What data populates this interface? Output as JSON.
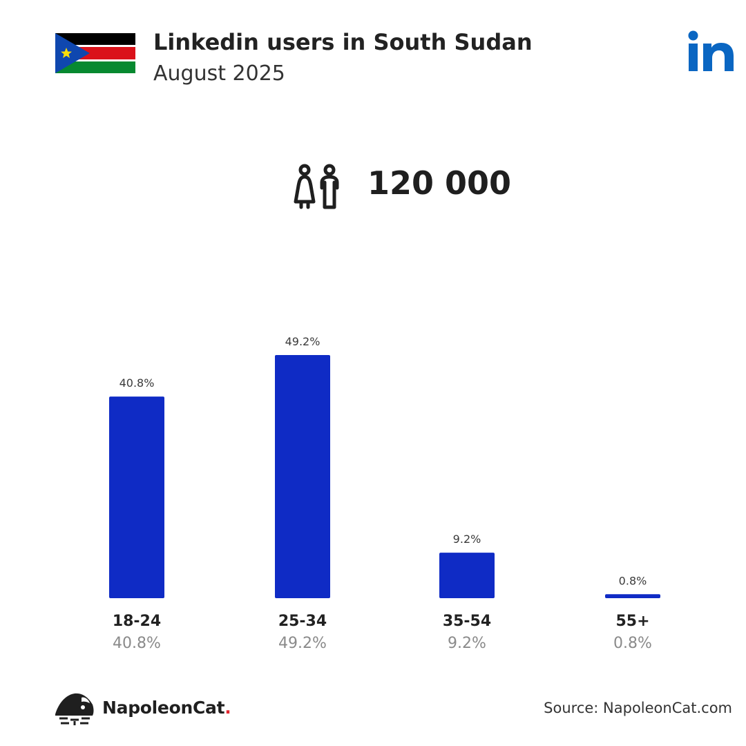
{
  "header": {
    "title": "Linkedin users in South Sudan",
    "subtitle": "August 2025",
    "flag_icon": "south-sudan-flag-icon",
    "platform_icon": "linkedin-logo-icon"
  },
  "summary": {
    "icon": "users-icon",
    "total": "120 000"
  },
  "colors": {
    "bar": "#0f2bc5",
    "linkedin": "#0a66c2",
    "brand_dot": "#e3262f"
  },
  "chart_data": {
    "type": "bar",
    "categories": [
      "18-24",
      "25-34",
      "35-54",
      "55+"
    ],
    "values": [
      40.8,
      49.2,
      9.2,
      0.8
    ],
    "value_labels": [
      "40.8%",
      "49.2%",
      "9.2%",
      "0.8%"
    ],
    "title": "",
    "xlabel": "",
    "ylabel": "",
    "ylim": [
      0,
      49.2
    ],
    "grid": false,
    "legend": "none"
  },
  "footer": {
    "brand_name": "NapoleonCat",
    "brand_dot": ".",
    "brand_icon": "napoleoncat-logo-icon",
    "source": "Source: NapoleonCat.com"
  }
}
